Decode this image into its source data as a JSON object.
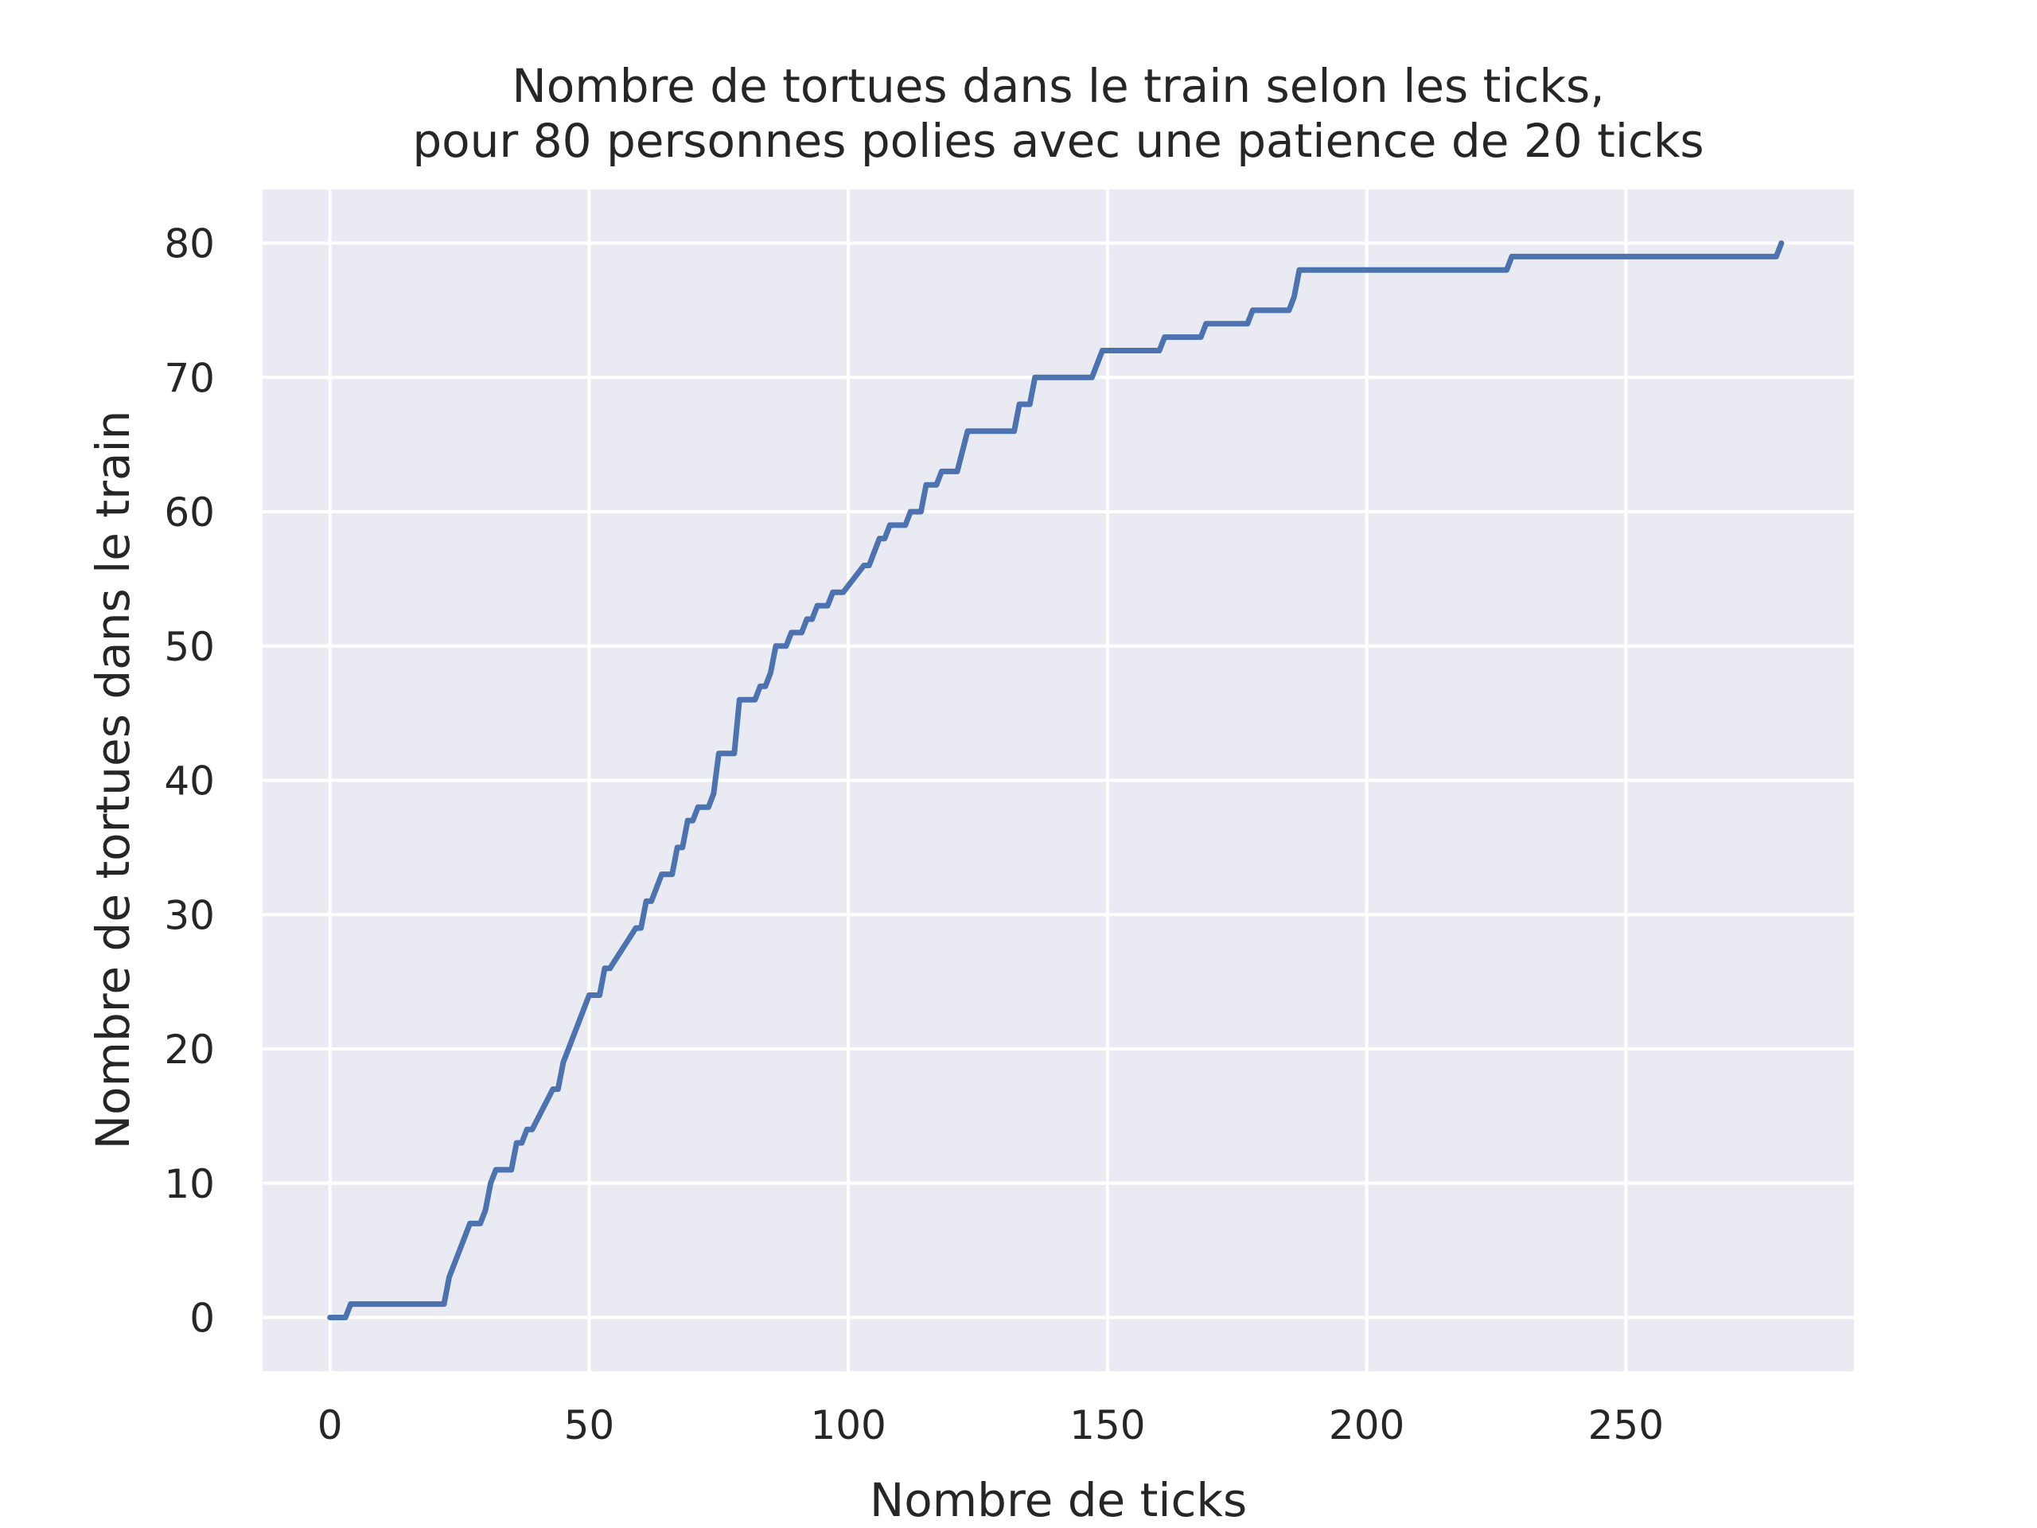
{
  "chart_data": {
    "type": "line",
    "title": [
      "Nombre de tortues dans le train selon les ticks,",
      "pour 80 personnes polies avec une patience de 20 ticks"
    ],
    "xlabel": "Nombre de ticks",
    "ylabel": "Nombre de tortues dans le train",
    "xlim": [
      -13,
      294
    ],
    "ylim": [
      -4,
      84
    ],
    "xticks": [
      0,
      50,
      100,
      150,
      200,
      250
    ],
    "yticks": [
      0,
      10,
      20,
      30,
      40,
      50,
      60,
      70,
      80
    ],
    "grid": true,
    "background": "#eaeaf2",
    "series": [
      {
        "color": "#4c72b0",
        "x": [
          0,
          3,
          4,
          22,
          23,
          27,
          29,
          30,
          31,
          32,
          35,
          36,
          37,
          38,
          39,
          43,
          44,
          45,
          46,
          47,
          50,
          51,
          52,
          53,
          54,
          59,
          60,
          61,
          62,
          64,
          65,
          66,
          67,
          68,
          69,
          70,
          71,
          73,
          74,
          75,
          78,
          79,
          81,
          82,
          83,
          84,
          85,
          86,
          88,
          89,
          90,
          91,
          92,
          93,
          94,
          96,
          97,
          98,
          99,
          103,
          104,
          106,
          107,
          108,
          111,
          112,
          114,
          115,
          117,
          118,
          120,
          121,
          123,
          132,
          133,
          135,
          136,
          147,
          149,
          160,
          161,
          168,
          169,
          177,
          178,
          184,
          185,
          186,
          187,
          227,
          228,
          279,
          280
        ],
        "y": [
          0,
          0,
          1,
          1,
          3,
          7,
          7,
          8,
          10,
          11,
          11,
          13,
          13,
          14,
          14,
          17,
          17,
          19,
          20,
          21,
          24,
          24,
          24,
          26,
          26,
          29,
          29,
          31,
          31,
          33,
          33,
          33,
          35,
          35,
          37,
          37,
          38,
          38,
          39,
          42,
          42,
          46,
          46,
          46,
          47,
          47,
          48,
          50,
          50,
          51,
          51,
          51,
          52,
          52,
          53,
          53,
          54,
          54,
          54,
          56,
          56,
          58,
          58,
          59,
          59,
          60,
          60,
          62,
          62,
          63,
          63,
          63,
          66,
          66,
          68,
          68,
          70,
          70,
          72,
          72,
          73,
          73,
          74,
          74,
          75,
          75,
          75,
          76,
          78,
          78,
          79,
          79,
          80
        ]
      }
    ]
  }
}
